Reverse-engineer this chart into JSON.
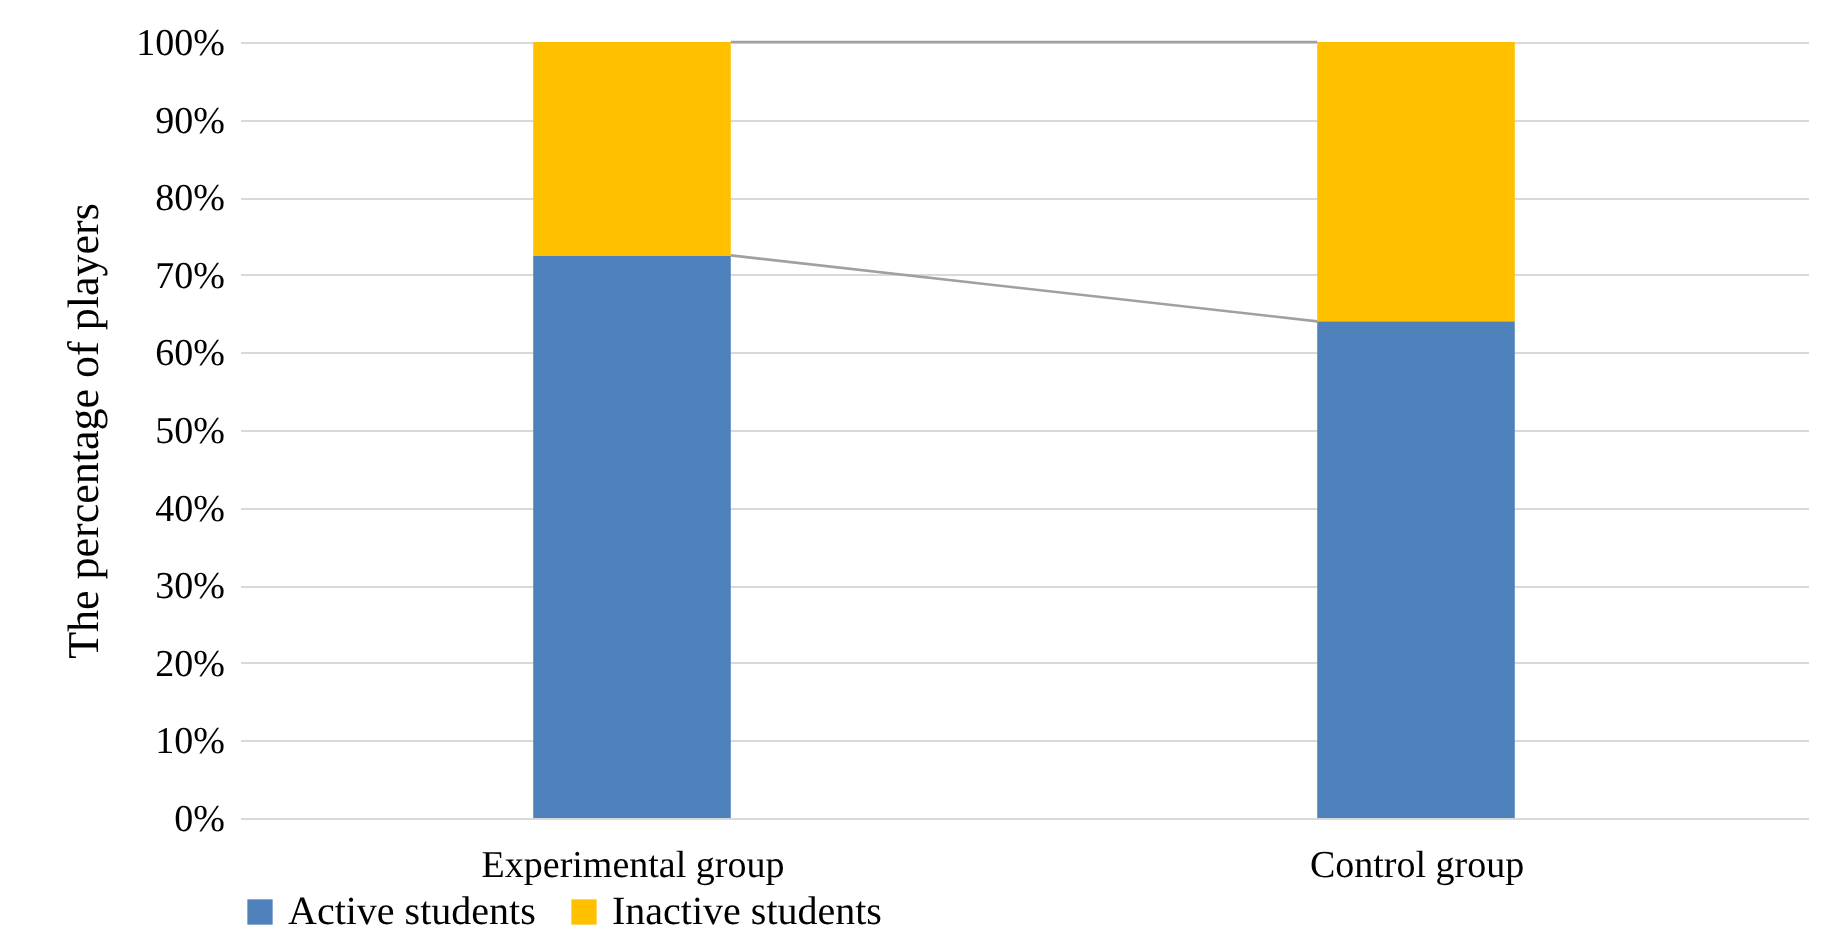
{
  "chart_data": {
    "type": "bar",
    "stacked": true,
    "ylabel": "The percentage of players",
    "categories": [
      "Experimental group",
      "Control group"
    ],
    "series": [
      {
        "name": "Active students",
        "color": "#4f81bd",
        "values": [
          72.5,
          64
        ]
      },
      {
        "name": "Inactive students",
        "color": "#ffc000",
        "values": [
          27.5,
          36
        ]
      }
    ],
    "ylim": [
      0,
      100
    ],
    "yticks": [
      {
        "value": 0,
        "label": "0%"
      },
      {
        "value": 10,
        "label": "10%"
      },
      {
        "value": 20,
        "label": "20%"
      },
      {
        "value": 30,
        "label": "30%"
      },
      {
        "value": 40,
        "label": "40%"
      },
      {
        "value": 50,
        "label": "50%"
      },
      {
        "value": 60,
        "label": "60%"
      },
      {
        "value": 70,
        "label": "70%"
      },
      {
        "value": 80,
        "label": "80%"
      },
      {
        "value": 90,
        "label": "90%"
      },
      {
        "value": 100,
        "label": "100%"
      }
    ],
    "grid": "y",
    "legend": "bottom"
  }
}
